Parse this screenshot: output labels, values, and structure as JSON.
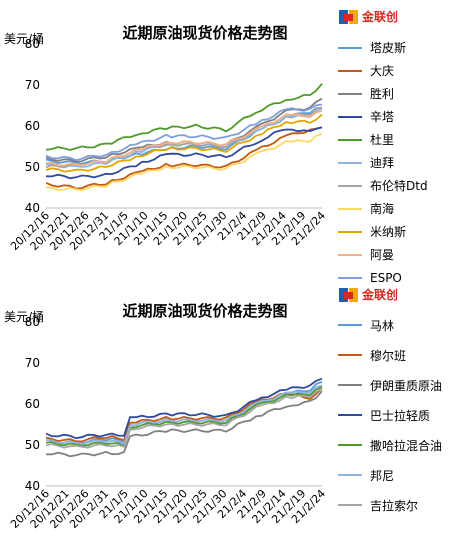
{
  "chart_data": [
    {
      "type": "line",
      "title": "近期原油现货价格走势图",
      "ylabel": "美元/桶",
      "ylim": [
        40,
        80
      ],
      "yticks": [
        40,
        50,
        60,
        70,
        80
      ],
      "xticks": [
        "20/12/16",
        "20/12/21",
        "20/12/26",
        "20/12/31",
        "21/1/5",
        "21/1/10",
        "21/1/15",
        "21/1/20",
        "21/1/25",
        "21/1/30",
        "21/2/4",
        "21/2/9",
        "21/2/14",
        "21/2/19",
        "21/2/24"
      ],
      "logo_text": "金联创",
      "x_count": 47,
      "series": [
        {
          "name": "塔皮斯",
          "color": "#5b9bd5",
          "start": 51.5,
          "points": [
            [
              0,
              51.5
            ],
            [
              5,
              51
            ],
            [
              10,
              51.5
            ],
            [
              15,
              53
            ],
            [
              20,
              54.5
            ],
            [
              25,
              55
            ],
            [
              30,
              54.5
            ],
            [
              35,
              58.5
            ],
            [
              40,
              62
            ],
            [
              44,
              63.5
            ],
            [
              46,
              64.5
            ]
          ]
        },
        {
          "name": "大庆",
          "color": "#c55a11",
          "start": 45.8,
          "points": [
            [
              0,
              45.8
            ],
            [
              5,
              45
            ],
            [
              10,
              46
            ],
            [
              15,
              48.5
            ],
            [
              20,
              50.5
            ],
            [
              25,
              50.5
            ],
            [
              30,
              50
            ],
            [
              35,
              54
            ],
            [
              40,
              57.5
            ],
            [
              44,
              59
            ],
            [
              46,
              60
            ]
          ]
        },
        {
          "name": "胜利",
          "color": "#808080",
          "start": 52,
          "points": [
            [
              0,
              52
            ],
            [
              5,
              51.5
            ],
            [
              10,
              52.5
            ],
            [
              15,
              54.5
            ],
            [
              20,
              56
            ],
            [
              25,
              56
            ],
            [
              30,
              55.5
            ],
            [
              35,
              59.5
            ],
            [
              40,
              63.5
            ],
            [
              44,
              64.5
            ],
            [
              46,
              67
            ]
          ]
        },
        {
          "name": "辛塔",
          "color": "#2e4a9e",
          "start": 48,
          "points": [
            [
              0,
              48
            ],
            [
              5,
              47.5
            ],
            [
              10,
              48
            ],
            [
              15,
              50.5
            ],
            [
              20,
              53
            ],
            [
              25,
              53
            ],
            [
              30,
              52.5
            ],
            [
              35,
              56
            ],
            [
              40,
              59.5
            ],
            [
              44,
              58.5
            ],
            [
              46,
              60
            ]
          ]
        },
        {
          "name": "杜里",
          "color": "#4e9a2b",
          "start": 54.5,
          "points": [
            [
              0,
              54.5
            ],
            [
              5,
              54.5
            ],
            [
              10,
              55.5
            ],
            [
              15,
              58
            ],
            [
              20,
              59.5
            ],
            [
              25,
              60
            ],
            [
              30,
              59
            ],
            [
              35,
              63.5
            ],
            [
              40,
              66.5
            ],
            [
              44,
              67.5
            ],
            [
              46,
              70
            ]
          ]
        },
        {
          "name": "迪拜",
          "color": "#8fb4e3",
          "start": 50.5,
          "points": [
            [
              0,
              50.5
            ],
            [
              5,
              50
            ],
            [
              10,
              51
            ],
            [
              15,
              53.5
            ],
            [
              20,
              55.5
            ],
            [
              25,
              55.5
            ],
            [
              30,
              55
            ],
            [
              35,
              58.5
            ],
            [
              40,
              62
            ],
            [
              44,
              62.5
            ],
            [
              46,
              64
            ]
          ]
        },
        {
          "name": "布伦特Dtd",
          "color": "#a5a5a5",
          "start": 50,
          "points": [
            [
              0,
              50
            ],
            [
              5,
              50.5
            ],
            [
              10,
              51.5
            ],
            [
              15,
              54
            ],
            [
              20,
              55.5
            ],
            [
              25,
              55.5
            ],
            [
              30,
              55
            ],
            [
              35,
              59
            ],
            [
              40,
              62.5
            ],
            [
              44,
              63
            ],
            [
              46,
              64.5
            ]
          ]
        },
        {
          "name": "南海",
          "color": "#ffd966",
          "start": 44.8,
          "points": [
            [
              0,
              44.8
            ],
            [
              5,
              44.5
            ],
            [
              10,
              45.5
            ],
            [
              15,
              48
            ],
            [
              20,
              50
            ],
            [
              25,
              50
            ],
            [
              30,
              49.5
            ],
            [
              35,
              53
            ],
            [
              40,
              56
            ],
            [
              44,
              56.5
            ],
            [
              46,
              58
            ]
          ]
        },
        {
          "name": "米纳斯",
          "color": "#e0a800",
          "start": 49.5,
          "points": [
            [
              0,
              49.5
            ],
            [
              5,
              49
            ],
            [
              10,
              50
            ],
            [
              15,
              52.5
            ],
            [
              20,
              54.5
            ],
            [
              25,
              54.5
            ],
            [
              30,
              54
            ],
            [
              35,
              57.5
            ],
            [
              40,
              61
            ],
            [
              44,
              61
            ],
            [
              46,
              62.5
            ]
          ]
        },
        {
          "name": "阿曼",
          "color": "#f4b183",
          "start": 50.8,
          "points": [
            [
              0,
              50.8
            ],
            [
              5,
              50.5
            ],
            [
              10,
              51.5
            ],
            [
              15,
              54
            ],
            [
              20,
              56
            ],
            [
              25,
              56
            ],
            [
              30,
              55.5
            ],
            [
              35,
              59
            ],
            [
              40,
              62.5
            ],
            [
              44,
              62.5
            ],
            [
              46,
              63.5
            ]
          ]
        },
        {
          "name": "ESPO",
          "color": "#7f9fe0",
          "start": 52.5,
          "points": [
            [
              0,
              52.5
            ],
            [
              5,
              52
            ],
            [
              10,
              53
            ],
            [
              15,
              55.5
            ],
            [
              20,
              57.5
            ],
            [
              25,
              57.5
            ],
            [
              30,
              57
            ],
            [
              35,
              60.5
            ],
            [
              40,
              64
            ],
            [
              44,
              64
            ],
            [
              46,
              65.5
            ]
          ]
        }
      ]
    },
    {
      "type": "line",
      "title": "近期原油现货价格走势图",
      "ylabel": "美元/桶",
      "ylim": [
        40,
        80
      ],
      "yticks": [
        40,
        50,
        60,
        70,
        80
      ],
      "xticks": [
        "20/12/16",
        "20/12/21",
        "20/12/26",
        "20/12/31",
        "21/1/5",
        "21/1/10",
        "21/1/15",
        "21/1/20",
        "21/1/25",
        "21/1/30",
        "21/2/4",
        "21/2/9",
        "21/2/14",
        "21/2/19",
        "21/2/24"
      ],
      "logo_text": "金联创",
      "x_count": 47,
      "series": [
        {
          "name": "马林",
          "color": "#5b9bd5",
          "points": [
            [
              0,
              51
            ],
            [
              5,
              50.5
            ],
            [
              10,
              51.5
            ],
            [
              13,
              51
            ],
            [
              14,
              55
            ],
            [
              20,
              56
            ],
            [
              25,
              56
            ],
            [
              30,
              56
            ],
            [
              35,
              60
            ],
            [
              40,
              62.5
            ],
            [
              44,
              63.5
            ],
            [
              46,
              65.5
            ]
          ]
        },
        {
          "name": "穆尔班",
          "color": "#c55a11",
          "points": [
            [
              0,
              51.5
            ],
            [
              5,
              51
            ],
            [
              10,
              52
            ],
            [
              13,
              51.5
            ],
            [
              14,
              55.5
            ],
            [
              20,
              56.5
            ],
            [
              25,
              56.5
            ],
            [
              30,
              56.5
            ],
            [
              35,
              60.5
            ],
            [
              40,
              62.5
            ],
            [
              44,
              61.5
            ],
            [
              46,
              63.5
            ]
          ]
        },
        {
          "name": "伊朗重质原油",
          "color": "#808080",
          "points": [
            [
              0,
              48
            ],
            [
              5,
              47.5
            ],
            [
              10,
              48
            ],
            [
              13,
              48
            ],
            [
              14,
              52
            ],
            [
              20,
              53.5
            ],
            [
              25,
              53.5
            ],
            [
              30,
              53.5
            ],
            [
              35,
              57
            ],
            [
              40,
              59.5
            ],
            [
              44,
              60.5
            ],
            [
              46,
              63
            ]
          ]
        },
        {
          "name": "巴士拉轻质",
          "color": "#2e4a9e",
          "points": [
            [
              0,
              52.5
            ],
            [
              5,
              52
            ],
            [
              10,
              52.5
            ],
            [
              13,
              52.5
            ],
            [
              14,
              56.5
            ],
            [
              20,
              57.5
            ],
            [
              25,
              57.5
            ],
            [
              30,
              57
            ],
            [
              35,
              61
            ],
            [
              40,
              63.5
            ],
            [
              44,
              64.5
            ],
            [
              46,
              66.5
            ]
          ]
        },
        {
          "name": "撒哈拉混合油",
          "color": "#4e9a2b",
          "points": [
            [
              0,
              50.5
            ],
            [
              5,
              50
            ],
            [
              10,
              50.5
            ],
            [
              13,
              50
            ],
            [
              14,
              54.5
            ],
            [
              20,
              55.5
            ],
            [
              25,
              55.5
            ],
            [
              30,
              55.5
            ],
            [
              35,
              59.5
            ],
            [
              40,
              62
            ],
            [
              44,
              62.5
            ],
            [
              46,
              64
            ]
          ]
        },
        {
          "name": "邦尼",
          "color": "#8fb4e3",
          "points": [
            [
              0,
              51
            ],
            [
              5,
              50.5
            ],
            [
              10,
              51
            ],
            [
              13,
              50.5
            ],
            [
              14,
              55
            ],
            [
              20,
              56
            ],
            [
              25,
              56
            ],
            [
              30,
              56
            ],
            [
              35,
              60
            ],
            [
              40,
              62.5
            ],
            [
              44,
              63
            ],
            [
              46,
              64.5
            ]
          ]
        },
        {
          "name": "吉拉索尔",
          "color": "#a5a5a5",
          "points": [
            [
              0,
              50
            ],
            [
              5,
              49.5
            ],
            [
              10,
              50
            ],
            [
              13,
              49.5
            ],
            [
              14,
              54
            ],
            [
              20,
              55
            ],
            [
              25,
              55
            ],
            [
              30,
              55
            ],
            [
              35,
              59
            ],
            [
              40,
              61.5
            ],
            [
              44,
              62
            ],
            [
              46,
              63.5
            ]
          ]
        }
      ]
    }
  ]
}
